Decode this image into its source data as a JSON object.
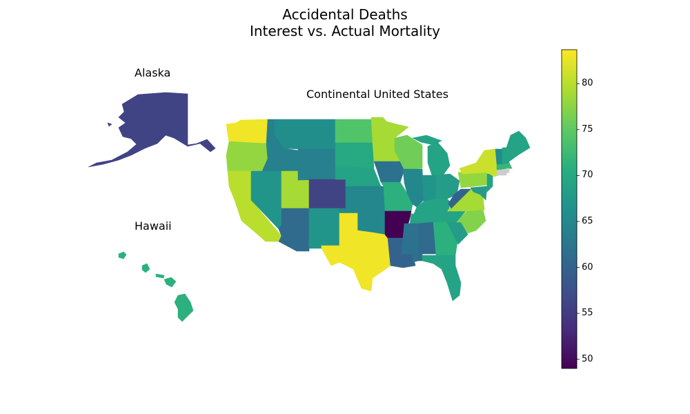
{
  "title_line1": "Accidental Deaths",
  "title_line2": "Interest vs. Actual Mortality",
  "labels": {
    "alaska": "Alaska",
    "hawaii": "Hawaii",
    "continental": "Continental United States"
  },
  "colorbar": {
    "colormap": "viridis",
    "min": 49,
    "max": 83.7,
    "ticks": [
      "50",
      "55",
      "60",
      "65",
      "70",
      "75",
      "80"
    ]
  },
  "chart_data": {
    "type": "choropleth",
    "metric": "Accidental Deaths – Interest vs. Actual Mortality",
    "states": [
      {
        "name": "Washington",
        "value": 83
      },
      {
        "name": "Oregon",
        "value": 78
      },
      {
        "name": "California",
        "value": 80
      },
      {
        "name": "Idaho",
        "value": 64
      },
      {
        "name": "Nevada",
        "value": 67
      },
      {
        "name": "Utah",
        "value": 79
      },
      {
        "name": "Arizona",
        "value": 61
      },
      {
        "name": "Montana",
        "value": 66
      },
      {
        "name": "Wyoming",
        "value": 64
      },
      {
        "name": "Colorado",
        "value": 56
      },
      {
        "name": "New Mexico",
        "value": 67
      },
      {
        "name": "North Dakota",
        "value": 74
      },
      {
        "name": "South Dakota",
        "value": 70
      },
      {
        "name": "Nebraska",
        "value": 69
      },
      {
        "name": "Kansas",
        "value": 65
      },
      {
        "name": "Oklahoma",
        "value": 65
      },
      {
        "name": "Texas",
        "value": 83
      },
      {
        "name": "Minnesota",
        "value": 79
      },
      {
        "name": "Iowa",
        "value": 62
      },
      {
        "name": "Missouri",
        "value": 71
      },
      {
        "name": "Arkansas",
        "value": 49
      },
      {
        "name": "Louisiana",
        "value": 60
      },
      {
        "name": "Wisconsin",
        "value": 76
      },
      {
        "name": "Illinois",
        "value": 65
      },
      {
        "name": "Michigan",
        "value": 69
      },
      {
        "name": "Indiana",
        "value": 67
      },
      {
        "name": "Ohio",
        "value": 68
      },
      {
        "name": "Kentucky",
        "value": 69
      },
      {
        "name": "Tennessee",
        "value": 69
      },
      {
        "name": "Mississippi",
        "value": 62
      },
      {
        "name": "Alabama",
        "value": 61
      },
      {
        "name": "Georgia",
        "value": 71
      },
      {
        "name": "Florida",
        "value": 69
      },
      {
        "name": "South Carolina",
        "value": 68
      },
      {
        "name": "North Carolina",
        "value": 77
      },
      {
        "name": "Virginia",
        "value": 79
      },
      {
        "name": "West Virginia",
        "value": 60
      },
      {
        "name": "Pennsylvania",
        "value": 78
      },
      {
        "name": "New York",
        "value": 81
      },
      {
        "name": "Maine",
        "value": 69
      },
      {
        "name": "Vermont",
        "value": 66
      },
      {
        "name": "New Hampshire",
        "value": 69
      },
      {
        "name": "Massachusetts",
        "value": 72
      },
      {
        "name": "New Jersey",
        "value": 69
      },
      {
        "name": "Maryland",
        "value": 68
      },
      {
        "name": "Alaska",
        "value": 56
      },
      {
        "name": "Hawaii",
        "value": 71
      }
    ]
  }
}
